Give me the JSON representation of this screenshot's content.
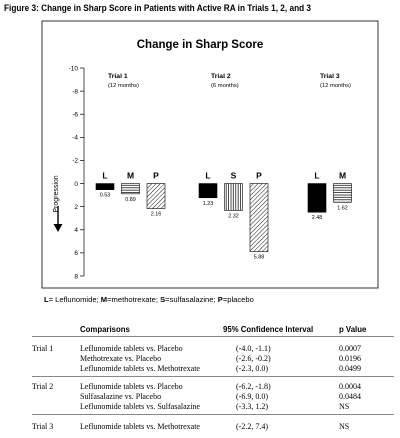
{
  "figure_title": "Figure 3: Change in Sharp Score in Patients with Active RA in Trials 1, 2, and 3",
  "chart_data": {
    "type": "bar",
    "title": "Change in Sharp Score",
    "ylabel": "Progression",
    "ylim": [
      -10,
      8
    ],
    "y_ticks": [
      "-10",
      "-8",
      "-6",
      "-4",
      "-2",
      "0",
      "2",
      "4",
      "6",
      "8"
    ],
    "y_inverted": true,
    "groups": [
      {
        "name": "Trial 1",
        "subtitle": "(12 months)",
        "bars": [
          {
            "letter": "L",
            "value": 0.53,
            "label": "0.53"
          },
          {
            "letter": "M",
            "value": 0.89,
            "label": "0.89"
          },
          {
            "letter": "P",
            "value": 2.16,
            "label": "2.16"
          }
        ]
      },
      {
        "name": "Trial 2",
        "subtitle": "(6 months)",
        "bars": [
          {
            "letter": "L",
            "value": 1.23,
            "label": "1.23"
          },
          {
            "letter": "S",
            "value": 2.32,
            "label": "2.32"
          },
          {
            "letter": "P",
            "value": 5.88,
            "label": "5.88"
          }
        ]
      },
      {
        "name": "Trial 3",
        "subtitle": "(12 months)",
        "bars": [
          {
            "letter": "L",
            "value": 2.48,
            "label": "2.48"
          },
          {
            "letter": "M",
            "value": 1.62,
            "label": "1.62"
          }
        ]
      }
    ],
    "patterns": {
      "L": "solid-black",
      "M": "horizontal-lines",
      "S": "vertical-lines",
      "P": "diagonal-hatch"
    }
  },
  "legend": {
    "L_key": "L",
    "L_text": "= Leflunomide; ",
    "M_key": "M",
    "M_text": "=methotrexate; ",
    "S_key": "S",
    "S_text": "=sulfasalazine; ",
    "P_key": "P",
    "P_text": "=placebo"
  },
  "table": {
    "headers": {
      "comparisons": "Comparisons",
      "ci": "95% Confidence Interval",
      "p": "p Value"
    },
    "sections": [
      {
        "trial": "Trial 1",
        "rows": [
          {
            "comparison": "Leflunomide tablets vs. Placebo",
            "ci": "(-4.0, -1.1)",
            "p": "0.0007"
          },
          {
            "comparison": "Methotrexate vs. Placebo",
            "ci": "(-2.6, -0.2)",
            "p": "0.0196"
          },
          {
            "comparison": "Leflunomide tablets vs. Methotrexate",
            "ci": "(-2.3, 0.0)",
            "p": "0.0499"
          }
        ]
      },
      {
        "trial": "Trial 2",
        "rows": [
          {
            "comparison": "Leflunomide tablets vs. Placebo",
            "ci": "(-6.2, -1.8)",
            "p": "0.0004"
          },
          {
            "comparison": "Sulfasalazine vs. Placebo",
            "ci": "(-6.9, 0.0)",
            "p": "0.0484"
          },
          {
            "comparison": "Leflunomide tablets vs. Sulfasalazine",
            "ci": "(-3.3, 1.2)",
            "p": "NS"
          }
        ]
      },
      {
        "trial": "Trial 3",
        "rows": [
          {
            "comparison": "Leflunomide tablets vs. Methotrexate",
            "ci": "(-2.2, 7.4)",
            "p": "NS"
          }
        ]
      }
    ]
  }
}
